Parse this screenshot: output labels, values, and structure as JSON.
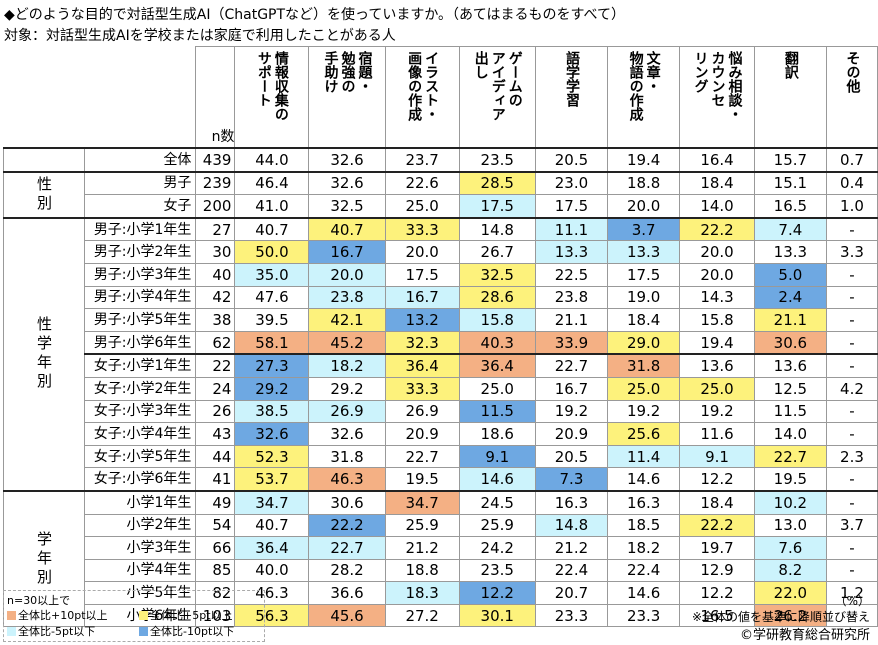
{
  "header": {
    "title": "◆どのような目的で対話型生成AI（ChatGPTなど）を使っていますか。（あてはまるものをすべて）",
    "subtitle": "対象：対話型生成AIを学校または家庭で利用したことがある人"
  },
  "table": {
    "n_label": "n数",
    "columns": [
      [
        "情報収集の",
        "サポート"
      ],
      [
        "宿題・",
        "勉強の",
        "手助け"
      ],
      [
        "イラスト・",
        "画像の作成"
      ],
      [
        "ゲームの",
        "アイディア",
        "出し"
      ],
      [
        "語学学習"
      ],
      [
        "文章・",
        "物語の作成"
      ],
      [
        "悩み相談・",
        "カウンセ",
        "リング"
      ],
      [
        "翻訳"
      ],
      [
        "その他"
      ]
    ],
    "sections": [
      {
        "blocks": [
          [
            {
              "label": "全体",
              "n": "439",
              "values": [
                "44.0",
                "32.6",
                "23.7",
                "23.5",
                "20.5",
                "19.4",
                "16.4",
                "15.7",
                "0.7"
              ],
              "highlight": [
                null,
                null,
                null,
                null,
                null,
                null,
                null,
                null,
                null
              ]
            }
          ]
        ]
      },
      {
        "label": "性別",
        "blocks": [
          [
            {
              "label": "男子",
              "n": "239",
              "values": [
                "46.4",
                "32.6",
                "22.6",
                "28.5",
                "23.0",
                "18.8",
                "18.4",
                "15.1",
                "0.4"
              ],
              "highlight": [
                null,
                null,
                null,
                1,
                null,
                null,
                null,
                null,
                null
              ]
            },
            {
              "label": "女子",
              "n": "200",
              "values": [
                "41.0",
                "32.5",
                "25.0",
                "17.5",
                "17.5",
                "20.0",
                "14.0",
                "16.5",
                "1.0"
              ],
              "highlight": [
                null,
                null,
                null,
                2,
                null,
                null,
                null,
                null,
                null
              ]
            }
          ]
        ]
      },
      {
        "label": "性学年別",
        "blocks": [
          [
            {
              "label": "男子:小学1年生",
              "n": "27",
              "values": [
                "40.7",
                "40.7",
                "33.3",
                "14.8",
                "11.1",
                "3.7",
                "22.2",
                "7.4",
                "-"
              ],
              "highlight": [
                null,
                1,
                1,
                null,
                2,
                3,
                1,
                2,
                null
              ]
            },
            {
              "label": "男子:小学2年生",
              "n": "30",
              "values": [
                "50.0",
                "16.7",
                "20.0",
                "26.7",
                "13.3",
                "13.3",
                "20.0",
                "13.3",
                "3.3"
              ],
              "highlight": [
                1,
                3,
                null,
                null,
                2,
                2,
                null,
                null,
                null
              ]
            },
            {
              "label": "男子:小学3年生",
              "n": "40",
              "values": [
                "35.0",
                "20.0",
                "17.5",
                "32.5",
                "22.5",
                "17.5",
                "20.0",
                "5.0",
                "-"
              ],
              "highlight": [
                2,
                2,
                null,
                1,
                null,
                null,
                null,
                3,
                null
              ]
            },
            {
              "label": "男子:小学4年生",
              "n": "42",
              "values": [
                "47.6",
                "23.8",
                "16.7",
                "28.6",
                "23.8",
                "19.0",
                "14.3",
                "2.4",
                "-"
              ],
              "highlight": [
                null,
                2,
                2,
                1,
                null,
                null,
                null,
                3,
                null
              ]
            },
            {
              "label": "男子:小学5年生",
              "n": "38",
              "values": [
                "39.5",
                "42.1",
                "13.2",
                "15.8",
                "21.1",
                "18.4",
                "15.8",
                "21.1",
                "-"
              ],
              "highlight": [
                null,
                1,
                3,
                2,
                null,
                null,
                null,
                1,
                null
              ]
            },
            {
              "label": "男子:小学6年生",
              "n": "62",
              "values": [
                "58.1",
                "45.2",
                "32.3",
                "40.3",
                "33.9",
                "29.0",
                "19.4",
                "30.6",
                "-"
              ],
              "highlight": [
                0,
                0,
                1,
                0,
                0,
                1,
                null,
                0,
                null
              ]
            }
          ],
          [
            {
              "label": "女子:小学1年生",
              "n": "22",
              "values": [
                "27.3",
                "18.2",
                "36.4",
                "36.4",
                "22.7",
                "31.8",
                "13.6",
                "13.6",
                "-"
              ],
              "highlight": [
                3,
                2,
                1,
                0,
                null,
                0,
                null,
                null,
                null
              ]
            },
            {
              "label": "女子:小学2年生",
              "n": "24",
              "values": [
                "29.2",
                "29.2",
                "33.3",
                "25.0",
                "16.7",
                "25.0",
                "25.0",
                "12.5",
                "4.2"
              ],
              "highlight": [
                3,
                null,
                1,
                null,
                null,
                1,
                1,
                null,
                null
              ]
            },
            {
              "label": "女子:小学3年生",
              "n": "26",
              "values": [
                "38.5",
                "26.9",
                "26.9",
                "11.5",
                "19.2",
                "19.2",
                "19.2",
                "11.5",
                "-"
              ],
              "highlight": [
                2,
                2,
                null,
                3,
                null,
                null,
                null,
                null,
                null
              ]
            },
            {
              "label": "女子:小学4年生",
              "n": "43",
              "values": [
                "32.6",
                "32.6",
                "20.9",
                "18.6",
                "20.9",
                "25.6",
                "11.6",
                "14.0",
                "-"
              ],
              "highlight": [
                3,
                null,
                null,
                null,
                null,
                1,
                null,
                null,
                null
              ]
            },
            {
              "label": "女子:小学5年生",
              "n": "44",
              "values": [
                "52.3",
                "31.8",
                "22.7",
                "9.1",
                "20.5",
                "11.4",
                "9.1",
                "22.7",
                "2.3"
              ],
              "highlight": [
                1,
                null,
                null,
                3,
                null,
                2,
                2,
                1,
                null
              ]
            },
            {
              "label": "女子:小学6年生",
              "n": "41",
              "values": [
                "53.7",
                "46.3",
                "19.5",
                "14.6",
                "7.3",
                "14.6",
                "12.2",
                "19.5",
                "-"
              ],
              "highlight": [
                1,
                0,
                null,
                2,
                3,
                null,
                null,
                null,
                null
              ]
            }
          ]
        ]
      },
      {
        "label": "学年別",
        "blocks": [
          [
            {
              "label": "小学1年生",
              "n": "49",
              "values": [
                "34.7",
                "30.6",
                "34.7",
                "24.5",
                "16.3",
                "16.3",
                "18.4",
                "10.2",
                "-"
              ],
              "highlight": [
                2,
                null,
                0,
                null,
                null,
                null,
                null,
                2,
                null
              ]
            },
            {
              "label": "小学2年生",
              "n": "54",
              "values": [
                "40.7",
                "22.2",
                "25.9",
                "25.9",
                "14.8",
                "18.5",
                "22.2",
                "13.0",
                "3.7"
              ],
              "highlight": [
                null,
                3,
                null,
                null,
                2,
                null,
                1,
                null,
                null
              ]
            },
            {
              "label": "小学3年生",
              "n": "66",
              "values": [
                "36.4",
                "22.7",
                "21.2",
                "24.2",
                "21.2",
                "18.2",
                "19.7",
                "7.6",
                "-"
              ],
              "highlight": [
                2,
                2,
                null,
                null,
                null,
                null,
                null,
                2,
                null
              ]
            },
            {
              "label": "小学4年生",
              "n": "85",
              "values": [
                "40.0",
                "28.2",
                "18.8",
                "23.5",
                "22.4",
                "22.4",
                "12.9",
                "8.2",
                "-"
              ],
              "highlight": [
                null,
                null,
                null,
                null,
                null,
                null,
                null,
                2,
                null
              ]
            },
            {
              "label": "小学5年生",
              "n": "82",
              "values": [
                "46.3",
                "36.6",
                "18.3",
                "12.2",
                "20.7",
                "14.6",
                "12.2",
                "22.0",
                "1.2"
              ],
              "highlight": [
                null,
                null,
                2,
                3,
                null,
                null,
                null,
                1,
                null
              ]
            },
            {
              "label": "小学6年生",
              "n": "103",
              "values": [
                "56.3",
                "45.6",
                "27.2",
                "30.1",
                "23.3",
                "23.3",
                "16.5",
                "26.2",
                "-"
              ],
              "highlight": [
                1,
                0,
                null,
                1,
                null,
                null,
                null,
                0,
                null
              ]
            }
          ]
        ]
      }
    ]
  },
  "legend": {
    "title": "n=30以上で",
    "items": [
      {
        "label": "全体比+10pt以上",
        "color": "#f4b084"
      },
      {
        "label": "全体比+5pt以上",
        "color": "#fdf27c"
      },
      {
        "label": "全体比-5pt以下",
        "color": "#ccf3fc"
      },
      {
        "label": "全体比-10pt以下",
        "color": "#6ea8e2"
      }
    ]
  },
  "footer": {
    "unit": "（%）",
    "note": "※全体の値を基準に降順並び替え",
    "copyright": "©学研教育総合研究所"
  }
}
